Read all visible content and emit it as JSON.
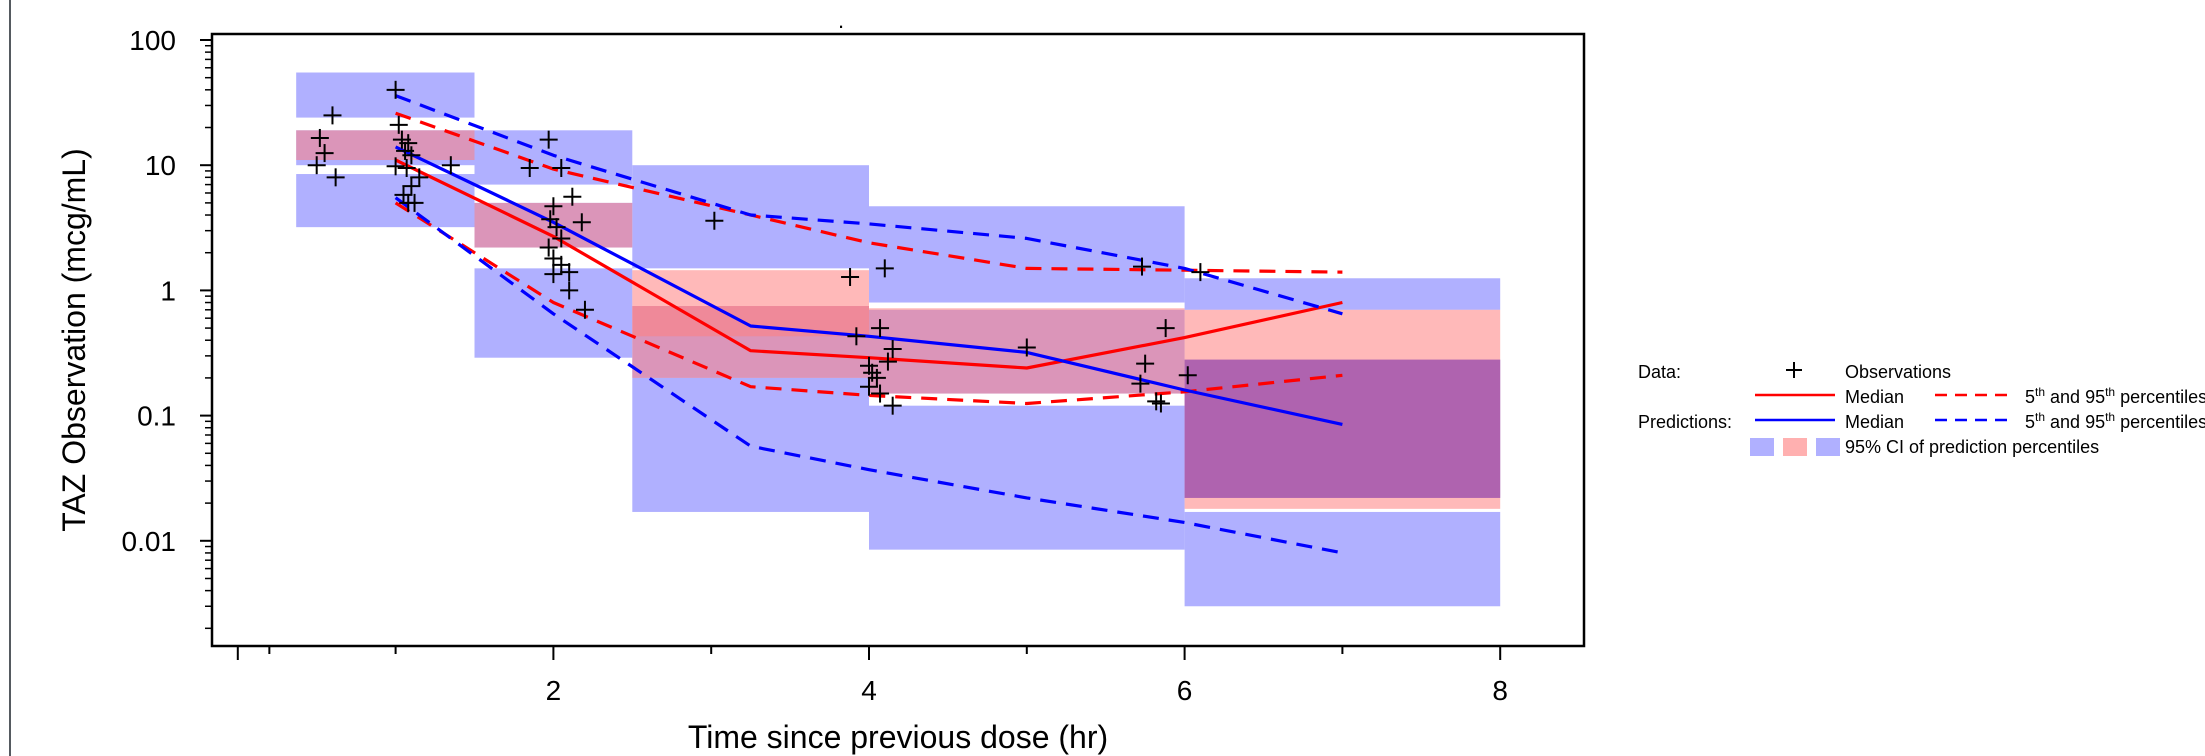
{
  "chart_data": {
    "type": "line",
    "title": "",
    "xlabel": "Time since previous dose (hr)",
    "ylabel": "TAZ Observation (mcg/mL)",
    "xlim": [
      0,
      8.5
    ],
    "ylim": [
      0.002,
      100
    ],
    "y_scale": "log",
    "x_ticks": [
      2,
      4,
      6,
      8
    ],
    "y_ticks": [
      {
        "value": 100,
        "label": "100"
      },
      {
        "value": 10,
        "label": "10"
      },
      {
        "value": 1,
        "label": "1"
      },
      {
        "value": 0.1,
        "label": "0.1"
      },
      {
        "value": 0.01,
        "label": "0.01"
      }
    ],
    "grid": false,
    "legend_position": "right",
    "colors": {
      "observed": "#ff0000",
      "predicted": "#0000ff",
      "ci_blue": "#b0b0ff",
      "ci_red": "#ffb0b0",
      "ci_overlap": "#c97fbf",
      "ci_overlap_dark": "#a55ab5",
      "observations": "#000000"
    },
    "prediction_ci_bands": [
      {
        "x": [
          0.37,
          1.5
        ],
        "p95": [
          24,
          55
        ],
        "median": [
          10,
          19
        ],
        "p5": [
          3.2,
          8.5
        ]
      },
      {
        "x": [
          1.5,
          2.5
        ],
        "p95": [
          7,
          19
        ],
        "median": [
          2.2,
          5
        ],
        "p5": [
          0.29,
          1.5
        ]
      },
      {
        "x": [
          2.5,
          4.0
        ],
        "p95": [
          1.5,
          10
        ],
        "median": [
          0.2,
          0.75
        ],
        "p5": [
          0.017,
          0.2
        ]
      },
      {
        "x": [
          4.0,
          6.0
        ],
        "p95": [
          0.8,
          4.7
        ],
        "median": [
          0.15,
          0.7
        ],
        "p5": [
          0.0085,
          0.12
        ]
      },
      {
        "x": [
          6.0,
          8.0
        ],
        "p95": [
          0.7,
          1.25
        ],
        "median": [
          0.022,
          0.28
        ],
        "p5": [
          0.003,
          0.017
        ]
      }
    ],
    "observed_ci_bands": [
      {
        "x": [
          0.37,
          1.5
        ],
        "median": [
          11,
          19
        ]
      },
      {
        "x": [
          1.5,
          2.5
        ],
        "median": [
          2.2,
          5
        ]
      },
      {
        "x": [
          2.5,
          4.0
        ],
        "median": [
          0.2,
          0.75
        ]
      },
      {
        "x": [
          2.5,
          4.0
        ],
        "p95": [
          0.43,
          1.45
        ]
      },
      {
        "x": [
          4.0,
          6.0
        ],
        "median": [
          0.15,
          0.72
        ]
      },
      {
        "x": [
          6.0,
          8.0
        ],
        "median": [
          0.018,
          0.7
        ]
      }
    ],
    "series": [
      {
        "name": "Median",
        "group": "Data",
        "color": "#ff0000",
        "dash": false,
        "x": [
          1.0,
          2.0,
          3.25,
          4.0,
          5.0,
          6.0,
          7.0
        ],
        "y": [
          11,
          2.7,
          0.33,
          0.29,
          0.24,
          0.42,
          0.8
        ]
      },
      {
        "name": "5th and 95th percentiles",
        "group": "Data",
        "color": "#ff0000",
        "dash": true,
        "x": [
          1.0,
          2.0,
          3.25,
          4.0,
          5.0,
          6.0,
          7.0
        ],
        "y": [
          26,
          9.3,
          4.0,
          2.4,
          1.5,
          1.45,
          1.4
        ]
      },
      {
        "name": "5th and 95th percentiles",
        "group": "Data",
        "color": "#ff0000",
        "dash": true,
        "x": [
          1.0,
          2.0,
          3.25,
          4.0,
          5.0,
          6.0,
          7.0
        ],
        "y": [
          5.0,
          0.8,
          0.17,
          0.145,
          0.125,
          0.155,
          0.21
        ]
      },
      {
        "name": "Median",
        "group": "Predictions",
        "color": "#0000ff",
        "dash": false,
        "x": [
          1.0,
          2.0,
          3.25,
          4.0,
          5.0,
          6.0,
          7.0
        ],
        "y": [
          14,
          3.5,
          0.52,
          0.43,
          0.32,
          0.16,
          0.085
        ]
      },
      {
        "name": "5th and 95th percentiles",
        "group": "Predictions",
        "color": "#0000ff",
        "dash": true,
        "x": [
          1.0,
          2.0,
          3.25,
          4.0,
          5.0,
          6.0,
          7.0
        ],
        "y": [
          36,
          12,
          4.0,
          3.4,
          2.6,
          1.5,
          0.65
        ]
      },
      {
        "name": "5th and 95th percentiles",
        "group": "Predictions",
        "color": "#0000ff",
        "dash": true,
        "x": [
          1.0,
          2.0,
          3.25,
          4.0,
          5.0,
          6.0,
          7.0
        ],
        "y": [
          5.5,
          0.65,
          0.057,
          0.037,
          0.022,
          0.014,
          0.008
        ]
      }
    ],
    "observations": [
      [
        0.52,
        16.5
      ],
      [
        0.5,
        10
      ],
      [
        0.55,
        12.5
      ],
      [
        0.6,
        25
      ],
      [
        0.62,
        8
      ],
      [
        1.0,
        40
      ],
      [
        1.0,
        9.8
      ],
      [
        1.02,
        21
      ],
      [
        1.04,
        16
      ],
      [
        1.06,
        13
      ],
      [
        1.08,
        15
      ],
      [
        1.1,
        12
      ],
      [
        1.05,
        5.8
      ],
      [
        1.08,
        5
      ],
      [
        1.12,
        5
      ],
      [
        1.1,
        6.8
      ],
      [
        1.15,
        8
      ],
      [
        1.07,
        9.5
      ],
      [
        1.35,
        10
      ],
      [
        1.85,
        9.5
      ],
      [
        1.97,
        16
      ],
      [
        2.0,
        4.7
      ],
      [
        1.98,
        3.7
      ],
      [
        2.02,
        3.2
      ],
      [
        2.05,
        2.6
      ],
      [
        1.97,
        2.2
      ],
      [
        2.0,
        1.8
      ],
      [
        2.05,
        1.6
      ],
      [
        2.1,
        1.4
      ],
      [
        2.12,
        5.6
      ],
      [
        2.18,
        3.5
      ],
      [
        2.0,
        1.35
      ],
      [
        2.1,
        1.0
      ],
      [
        2.2,
        0.7
      ],
      [
        2.05,
        9.5
      ],
      [
        3.02,
        3.6
      ],
      [
        3.88,
        1.28
      ],
      [
        4.1,
        1.5
      ],
      [
        3.92,
        0.43
      ],
      [
        4.07,
        0.5
      ],
      [
        4.0,
        0.25
      ],
      [
        4.02,
        0.22
      ],
      [
        4.05,
        0.2
      ],
      [
        4.0,
        0.17
      ],
      [
        4.07,
        0.15
      ],
      [
        4.12,
        0.27
      ],
      [
        4.15,
        0.34
      ],
      [
        4.15,
        0.12
      ],
      [
        5.0,
        0.35
      ],
      [
        5.73,
        1.55
      ],
      [
        5.72,
        0.18
      ],
      [
        5.75,
        0.26
      ],
      [
        5.82,
        0.13
      ],
      [
        5.85,
        0.125
      ],
      [
        5.88,
        0.5
      ],
      [
        6.02,
        0.21
      ],
      [
        6.1,
        1.4
      ]
    ]
  },
  "legend": {
    "data_label": "Data:",
    "predictions_label": "Predictions:",
    "observations_label": "Observations",
    "median_label": "Median",
    "percentile_base": "5",
    "percentile_sup": "th",
    "percentile_mid": " and 95",
    "percentile_sup2": "th",
    "percentile_tail": " percentiles",
    "ci_label": "95% CI of prediction percentiles",
    "observation_symbol": "+"
  },
  "top_mark": "."
}
